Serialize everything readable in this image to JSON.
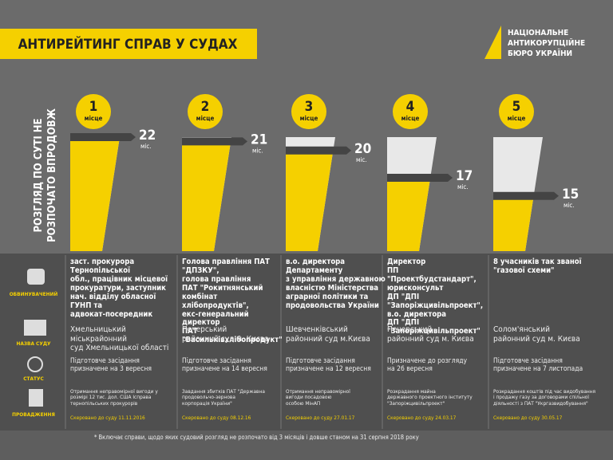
{
  "header": {
    "title": "АНТИРЕЙТИНГ СПРАВ У СУДАХ",
    "logo_lines": [
      "НАЦІОНАЛЬНЕ",
      "АНТИКОРУПЦІЙНЕ",
      "БЮРО УКРАЇНИ"
    ]
  },
  "chart_data": {
    "type": "bar",
    "axis_label_lines": [
      "РОЗГЛЯД ПО СУТІ НЕ",
      "РОЗПОЧАТО ВПРОДОВЖ"
    ],
    "categories": [
      "1",
      "2",
      "3",
      "4",
      "5"
    ],
    "place_word": "місце",
    "values": [
      22,
      21,
      20,
      17,
      15
    ],
    "unit": "міс.",
    "color": "#f5d000",
    "track_color": "#e8e8e8"
  },
  "row_labels": [
    "ОБВИНУВАЧЕНИЙ",
    "НАЗВА СУДУ",
    "СТАТУС",
    "ПРОВАДЖЕННЯ"
  ],
  "cases": [
    {
      "accused": "заст. прокурора Тернопільської\nобл., працівник місцевої\nпрокуратури, заступник\nнач. відділу обласної ГУНП та\nадвокат-посередник",
      "court": "Хмельницький міськрайонний\nсуд Хмельницької області",
      "status": "Підготовче засідання\nпризначене на 3 вересня",
      "proceeding": "Отримання неправомірної вигоди у\nрозмірі 12 тис. дол. США Ісправа\nтернопільських прокурорів",
      "sent": "Скеровано до суду  11.11.2016"
    },
    {
      "accused": "Голова правління ПАТ \"ДПЗКУ\",\nголова правління\nПАТ \"Рокитнянський\nкомбінат хлібопродуктів\",\nекс-генеральний директор\nПАТ \"Васильківхлібопродукт\"",
      "court": "Печерський\nрайонний суд м. Києва",
      "status": "Підготовче засідання\nпризначене на 14 вересня",
      "proceeding": "Завдання збитків ПАТ \"Державна\nпродовольчо-зернова\nкорпорація України\"",
      "sent": "Скеровано до суду  08.12.16"
    },
    {
      "accused": "в.о. директора Департаменту\nз управління державною\nвласністю Міністерства\nаграрної політики та\nпродовольства України",
      "court": "Шевченківський\nрайонний суд м.Києва",
      "status": "Підготовче засідання\nпризначене на 12 вересня",
      "proceeding": "Отримання неправомірної\nвигоди посадовою\nособою МінАП",
      "sent": "Скеровано до суду  27.01.17"
    },
    {
      "accused": "Директор\nПП \"Проектбудстандарт\",\nюрисконсульт\nДП \"ДПІ \"Запоріжцивільпроект\",\nв.о. директора\nДП \"ДПІ \"Запоріжцивільпроект\"",
      "court": "Печерський\nрайонний суд м. Києва",
      "status": "Призначене до розгляду\nна 26 вересня",
      "proceeding": "Розкрадання майна\nдержавного проектного інституту\n\"Запоріжцивільпроект\"",
      "sent": "Скеровано до суду  24.03.17"
    },
    {
      "accused": "8 учасників так званої\n\"газової схеми\"",
      "court": "Солом'янський\nрайонний суд м. Києва",
      "status": "Підготовче засідання\nпризначене на 7 листопада",
      "proceeding": "Розкрадання коштів під час видобування\nі продажу газу за договорами спільної\nдіяльності з ПАТ \"Укргазвидобування\"",
      "sent": "Скеровано до суду  30.05.17"
    }
  ],
  "footnote": "* Включає справи, щодо яких судовий розгляд не розпочато від 3 місяців і довше станом на 31 серпня 2018 року"
}
